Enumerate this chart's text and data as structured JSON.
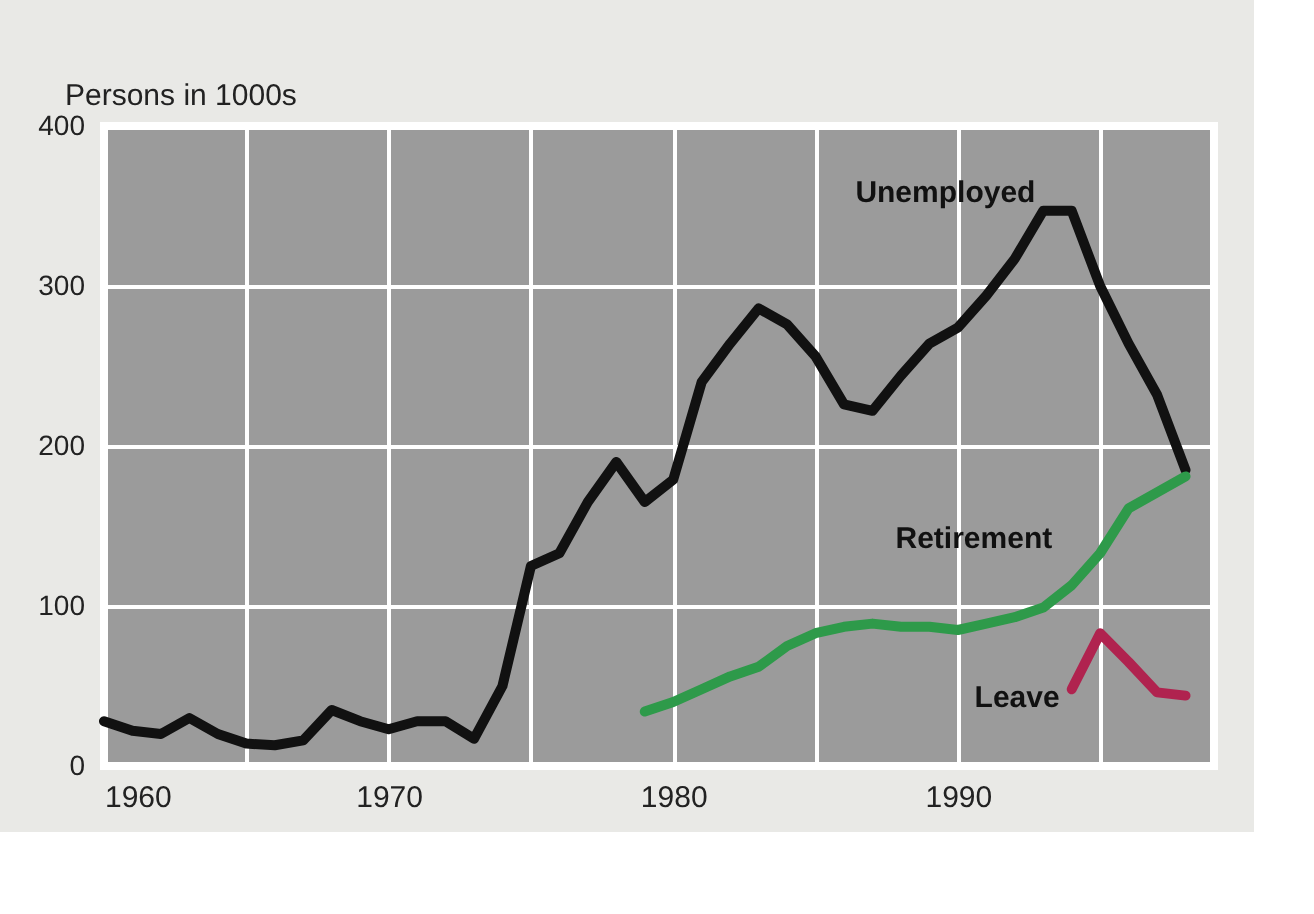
{
  "chart_data": {
    "type": "line",
    "ylabel": "Persons in 1000s",
    "xlim": [
      1960,
      1999
    ],
    "ylim": [
      0,
      400
    ],
    "xticks": [
      1960,
      {
        "value": 1965,
        "label": null
      },
      1970,
      {
        "value": 1975,
        "label": null
      },
      1980,
      {
        "value": 1985,
        "label": null
      },
      1990,
      {
        "value": 1995,
        "label": null
      }
    ],
    "yticks": [
      0,
      100,
      200,
      300,
      400
    ],
    "grid": true,
    "legend": false,
    "marker": "none",
    "line_style": "solid",
    "series": [
      {
        "name": "Unemployed",
        "color": "#111111",
        "x": [
          1960,
          1961,
          1962,
          1963,
          1964,
          1965,
          1966,
          1967,
          1968,
          1969,
          1970,
          1971,
          1972,
          1973,
          1974,
          1975,
          1976,
          1977,
          1978,
          1979,
          1980,
          1981,
          1982,
          1983,
          1984,
          1985,
          1986,
          1987,
          1988,
          1989,
          1990,
          1991,
          1992,
          1993,
          1994,
          1995,
          1996,
          1997,
          1998
        ],
        "values": [
          28,
          22,
          20,
          30,
          20,
          14,
          13,
          16,
          35,
          28,
          23,
          28,
          28,
          17,
          50,
          125,
          133,
          165,
          190,
          165,
          179,
          240,
          264,
          286,
          276,
          256,
          226,
          222,
          244,
          264,
          274,
          294,
          317,
          347,
          347,
          300,
          264,
          232,
          185
        ]
      },
      {
        "name": "Retirement",
        "color": "#2e9a4a",
        "x": [
          1979,
          1980,
          1981,
          1982,
          1983,
          1984,
          1985,
          1986,
          1987,
          1988,
          1989,
          1990,
          1991,
          1992,
          1993,
          1994,
          1995,
          1996,
          1997,
          1998
        ],
        "values": [
          34,
          40,
          48,
          56,
          62,
          75,
          83,
          87,
          89,
          87,
          87,
          85,
          89,
          93,
          99,
          113,
          133,
          161,
          171,
          181
        ]
      },
      {
        "name": "Leave",
        "color": "#b0234f",
        "x": [
          1994,
          1995,
          1996,
          1997,
          1998
        ],
        "values": [
          48,
          83,
          65,
          46,
          44
        ]
      }
    ]
  }
}
